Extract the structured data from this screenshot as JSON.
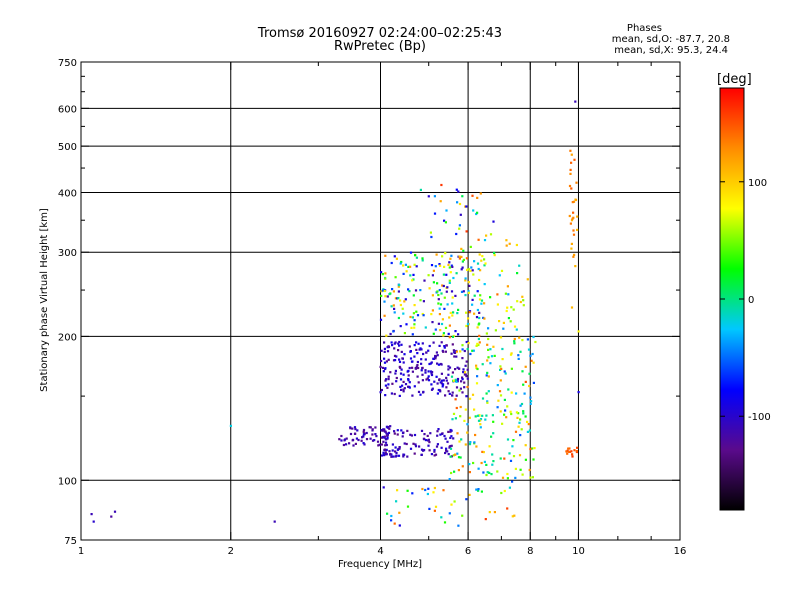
{
  "header": {
    "title_line1": "Tromsø 20160927 02:24:00–02:25:43",
    "title_line2": "RwPretec (Bp)",
    "stats_heading": "Phases",
    "stats_o": "mean, sd,O: -87.7, 20.8",
    "stats_x": "mean, sd,X:  95.3, 24.4"
  },
  "chart_data": {
    "type": "scatter",
    "title": "Tromsø 20160927 02:24:00–02:25:43 RwPretec (Bp)",
    "xlabel": "Frequency [MHz]",
    "ylabel": "Stationary phase Virtual Height [km]",
    "x_scale": "log",
    "y_scale": "log",
    "xlim": [
      1,
      16
    ],
    "ylim": [
      75,
      750
    ],
    "x_ticks": [
      1,
      2,
      4,
      6,
      8,
      10,
      16
    ],
    "x_tick_labels": [
      "1",
      "2",
      "4",
      "6",
      "8",
      "10",
      "16"
    ],
    "x_minor_ticks": [
      3,
      5,
      7,
      9,
      12,
      14
    ],
    "y_ticks": [
      75,
      100,
      200,
      300,
      400,
      500,
      600,
      750
    ],
    "y_tick_labels": [
      "75",
      "100",
      "200",
      "300",
      "400",
      "500",
      "600",
      "750"
    ],
    "y_minor_ticks": [
      150,
      250,
      350,
      450,
      550,
      650,
      700
    ],
    "grid_x": [
      2,
      4,
      6,
      8,
      10
    ],
    "grid_y": [
      100,
      200,
      300,
      400,
      500,
      600
    ],
    "colorbar": {
      "label": "[deg]",
      "range": [
        -180,
        180
      ],
      "ticks": [
        100,
        0,
        -100
      ],
      "tick_labels": [
        "100",
        "0",
        "-100"
      ],
      "colors": [
        "#000000",
        "#5a0a8c",
        "#0000ff",
        "#00c8ff",
        "#00ff00",
        "#ffff00",
        "#ff8c00",
        "#ff0000"
      ]
    },
    "clusters": [
      {
        "x": [
          3.3,
          4.2
        ],
        "y": [
          118,
          130
        ],
        "n": 70,
        "phase": [
          -130,
          -95
        ],
        "note": "lower O trace"
      },
      {
        "x": [
          4.0,
          5.6
        ],
        "y": [
          112,
          128
        ],
        "n": 120,
        "phase": [
          -130,
          -90
        ],
        "note": "lower O trace continuation"
      },
      {
        "x": [
          4.0,
          6.0
        ],
        "y": [
          150,
          195
        ],
        "n": 240,
        "phase": [
          -130,
          -85
        ],
        "note": "upper O trace"
      },
      {
        "x": [
          4.0,
          6.5
        ],
        "y": [
          200,
          300
        ],
        "n": 200,
        "phase": [
          -120,
          130
        ],
        "note": "mixed spread F"
      },
      {
        "x": [
          5.5,
          8.2
        ],
        "y": [
          100,
          200
        ],
        "n": 220,
        "phase": [
          -60,
          150
        ],
        "note": "X mode / mixed"
      },
      {
        "x": [
          5.5,
          8.0
        ],
        "y": [
          200,
          320
        ],
        "n": 70,
        "phase": [
          -40,
          150
        ],
        "note": "upper mixed"
      },
      {
        "x": [
          4.0,
          7.5
        ],
        "y": [
          80,
          100
        ],
        "n": 45,
        "phase": [
          -100,
          160
        ],
        "note": "lower scatter"
      },
      {
        "x": [
          4.6,
          6.8
        ],
        "y": [
          320,
          420
        ],
        "n": 30,
        "phase": [
          -110,
          160
        ],
        "note": "high scatter"
      },
      {
        "x": [
          9.6,
          9.95
        ],
        "y": [
          280,
          490
        ],
        "n": 28,
        "phase": [
          105,
          150
        ],
        "note": "spur near 10 MHz"
      },
      {
        "x": [
          9.4,
          9.95
        ],
        "y": [
          112,
          118
        ],
        "n": 14,
        "phase": [
          140,
          160
        ],
        "note": "orange group near 10 MHz"
      }
    ],
    "points": [
      {
        "x": 1.05,
        "y": 85,
        "phase": -110
      },
      {
        "x": 1.06,
        "y": 82,
        "phase": -100
      },
      {
        "x": 1.15,
        "y": 84,
        "phase": -120
      },
      {
        "x": 1.17,
        "y": 86,
        "phase": -110
      },
      {
        "x": 2.0,
        "y": 130,
        "phase": -20
      },
      {
        "x": 2.45,
        "y": 82,
        "phase": -110
      },
      {
        "x": 9.85,
        "y": 620,
        "phase": -110
      },
      {
        "x": 10.0,
        "y": 153,
        "phase": -90
      },
      {
        "x": 10.0,
        "y": 205,
        "phase": 80
      },
      {
        "x": 9.7,
        "y": 230,
        "phase": 110
      },
      {
        "x": 5.3,
        "y": 415,
        "phase": 160
      },
      {
        "x": 5.0,
        "y": 393,
        "phase": -100
      }
    ]
  }
}
